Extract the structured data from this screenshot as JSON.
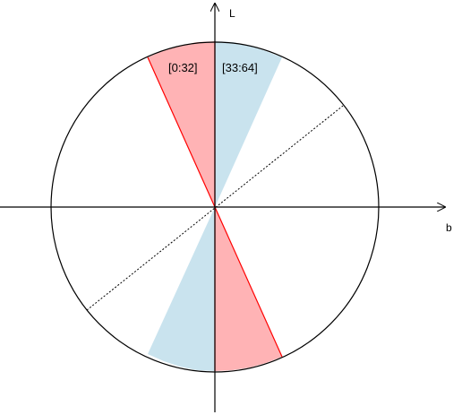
{
  "diagram": {
    "axes": {
      "horizontal_label": "b",
      "vertical_label": "L"
    },
    "sectors": [
      {
        "label": "[0:32]",
        "color": "#ffb3b5",
        "edge_color": "#ff0000"
      },
      {
        "label": "[33:64]",
        "color": "#c9e3ee",
        "edge_color": "#c9e3ee"
      }
    ],
    "colors": {
      "axis": "#000000",
      "circle": "#000000",
      "dashed_line": "#000000",
      "background": "#ffffff"
    }
  }
}
